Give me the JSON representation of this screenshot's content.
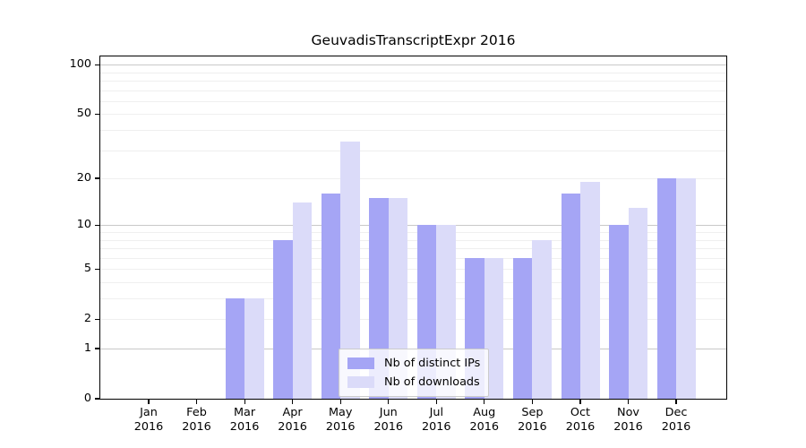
{
  "chart_data": {
    "type": "bar",
    "title": "GeuvadisTranscriptExpr 2016",
    "categories": [
      "Jan 2016",
      "Feb 2016",
      "Mar 2016",
      "Apr 2016",
      "May 2016",
      "Jun 2016",
      "Jul 2016",
      "Aug 2016",
      "Sep 2016",
      "Oct 2016",
      "Nov 2016",
      "Dec 2016"
    ],
    "series": [
      {
        "name": "Nb of distinct IPs",
        "color": "#a5a5f5",
        "values": [
          0,
          0,
          3,
          8,
          16,
          15,
          10,
          6,
          6,
          16,
          10,
          20
        ]
      },
      {
        "name": "Nb of downloads",
        "color": "#dbdbf9",
        "values": [
          0,
          0,
          3,
          14,
          34,
          15,
          10,
          6,
          8,
          19,
          13,
          20
        ]
      }
    ],
    "yscale": "log1p",
    "yticks": [
      0,
      1,
      2,
      5,
      10,
      20,
      50,
      100
    ],
    "ylim": [
      0,
      112
    ],
    "xlabel": "",
    "ylabel": "",
    "grid": "horizontal log gridlines, major at 1/10/100, minor at 2-9 and 20-90",
    "legend_position": "lower center inside plot"
  },
  "colors": {
    "background": "#ffffff",
    "axis_frame": "#000000",
    "major_grid": "#c9c9c9",
    "minor_grid": "#efefef",
    "text": "#000000",
    "legend_border": "#cccccc"
  }
}
